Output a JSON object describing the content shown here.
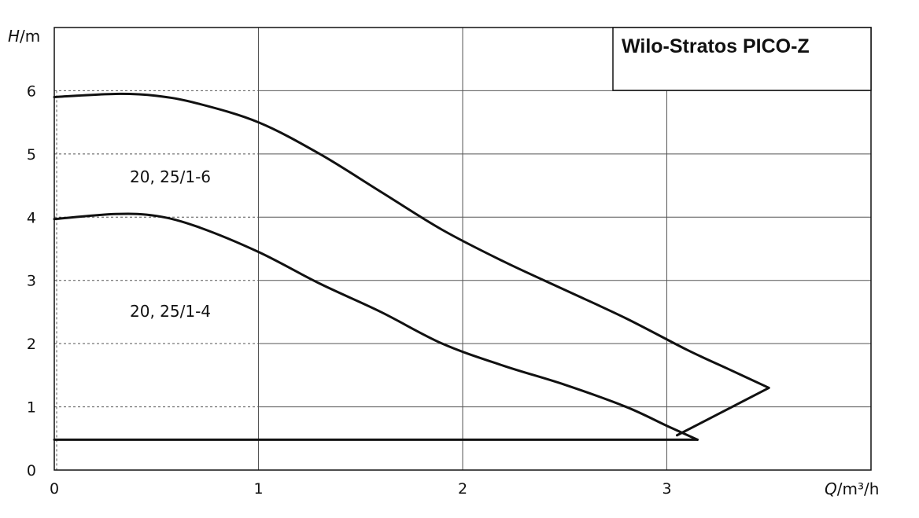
{
  "chart_data": {
    "type": "line",
    "title": "Wilo-Stratos PICO-Z",
    "xlabel": {
      "symbol": "Q",
      "unit": "/m³/h"
    },
    "ylabel": {
      "symbol": "H",
      "unit": "/m"
    },
    "xlim": [
      0,
      4
    ],
    "ylim": [
      0,
      7
    ],
    "xticks": [
      0,
      1,
      2,
      3
    ],
    "yticks": [
      0,
      1,
      2,
      3,
      4,
      5,
      6
    ],
    "grid": true,
    "series": [
      {
        "name": "20, 25/1-6",
        "x": [
          0,
          0.3,
          0.5,
          0.7,
          1.0,
          1.3,
          1.6,
          1.9,
          2.2,
          2.5,
          2.8,
          3.1,
          3.3,
          3.5,
          3.05
        ],
        "y": [
          5.9,
          5.95,
          5.92,
          5.8,
          5.5,
          5.0,
          4.4,
          3.8,
          3.3,
          2.85,
          2.4,
          1.9,
          1.6,
          1.3,
          0.55
        ]
      },
      {
        "name": "20, 25/1-4",
        "x": [
          0,
          0.3,
          0.5,
          0.7,
          1.0,
          1.3,
          1.6,
          1.9,
          2.2,
          2.5,
          2.8,
          3.0,
          3.15
        ],
        "y": [
          3.97,
          4.05,
          4.02,
          3.85,
          3.45,
          2.95,
          2.5,
          2.0,
          1.65,
          1.35,
          1.0,
          0.7,
          0.48
        ]
      },
      {
        "name": "",
        "x": [
          0,
          3.15
        ],
        "y": [
          0.48,
          0.48
        ]
      }
    ]
  }
}
